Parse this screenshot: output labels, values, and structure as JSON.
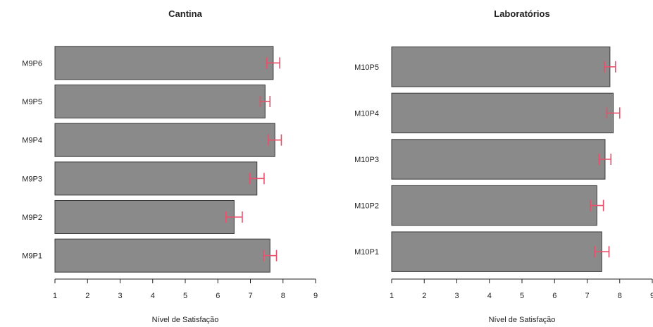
{
  "colors": {
    "bar": "#8a8a8a",
    "bar_border": "#3a3a3a",
    "error_bar": "#e8506b",
    "axis": "#222222"
  },
  "chart_data": [
    {
      "type": "bar",
      "orientation": "horizontal",
      "title": "Cantina",
      "xlabel": "Nível de Satisfação",
      "ylabel": "",
      "xlim": [
        1,
        9
      ],
      "xticks": [
        1,
        2,
        3,
        4,
        5,
        6,
        7,
        8,
        9
      ],
      "categories": [
        "M9P1",
        "M9P2",
        "M9P3",
        "M9P4",
        "M9P5",
        "M9P6"
      ],
      "values": [
        7.6,
        6.5,
        7.2,
        7.75,
        7.45,
        7.7
      ],
      "error": [
        0.2,
        0.25,
        0.22,
        0.2,
        0.15,
        0.2
      ]
    },
    {
      "type": "bar",
      "orientation": "horizontal",
      "title": "Laboratórios",
      "xlabel": "Nível de Satisfação",
      "ylabel": "",
      "xlim": [
        1,
        9
      ],
      "xticks": [
        1,
        2,
        3,
        4,
        5,
        6,
        7,
        8,
        9
      ],
      "categories": [
        "M10P1",
        "M10P2",
        "M10P3",
        "M10P4",
        "M10P5"
      ],
      "values": [
        7.45,
        7.3,
        7.55,
        7.8,
        7.7
      ],
      "error": [
        0.22,
        0.2,
        0.18,
        0.2,
        0.17
      ]
    }
  ]
}
